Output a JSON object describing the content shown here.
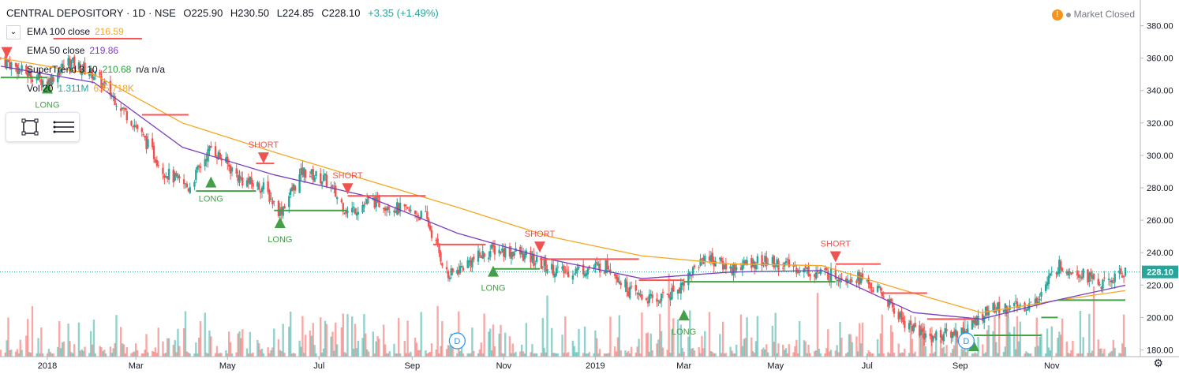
{
  "header": {
    "symbol": "CENTRAL DEPOSITORY · 1D · NSE",
    "open_label": "O225.90",
    "high_label": "H230.50",
    "low_label": "L224.85",
    "close_label": "C228.10",
    "change_label": "+3.35 (+1.49%)"
  },
  "indicators": [
    {
      "name": "EMA 100 close",
      "value": "216.59",
      "color": "#f5a623"
    },
    {
      "name": "EMA 50 close",
      "value": "219.86",
      "color": "#7b3fbd"
    },
    {
      "name": "SuperTrend 3 10",
      "value": "210.68",
      "extra": "n/a n/a",
      "color": "#2e9e3c"
    },
    {
      "name": "Vol 20",
      "value": "1.311M",
      "extra": "635.718K",
      "color": "#26a69a"
    }
  ],
  "status": {
    "text": "Market Closed"
  },
  "colors": {
    "up": "#26a69a",
    "down": "#ef5350",
    "long": "#43a047",
    "short": "#ef5350",
    "ema100": "#f5a623",
    "ema50": "#7b3fbd",
    "st_up": "#43a047",
    "st_down": "#ff5252"
  },
  "icons": {
    "collapse": "chevron-down-icon",
    "rect": "rectangle-tool-icon",
    "menu": "lines-menu-icon",
    "settings": "gear-icon",
    "warning": "warning-icon"
  },
  "chart_data": {
    "type": "candlestick",
    "title": "CENTRAL DEPOSITORY · 1D · NSE",
    "x_range": [
      "2017-12-01",
      "2019-12-20"
    ],
    "ylim": [
      170,
      390
    ],
    "y_ticks": [
      180,
      200,
      220,
      240,
      260,
      280,
      300,
      320,
      340,
      360,
      380
    ],
    "y_tick_labels": [
      "180.00",
      "200.00",
      "220.00",
      "240.00",
      "260.00",
      "280.00",
      "300.00",
      "320.00",
      "340.00",
      "360.00",
      "380.00"
    ],
    "x_ticks": [
      {
        "date": "2018-01-01",
        "label": "2018"
      },
      {
        "date": "2018-03-01",
        "label": "Mar"
      },
      {
        "date": "2018-05-01",
        "label": "May"
      },
      {
        "date": "2018-07-01",
        "label": "Jul"
      },
      {
        "date": "2018-09-01",
        "label": "Sep"
      },
      {
        "date": "2018-11-01",
        "label": "Nov"
      },
      {
        "date": "2019-01-01",
        "label": "2019"
      },
      {
        "date": "2019-03-01",
        "label": "Mar"
      },
      {
        "date": "2019-05-01",
        "label": "May"
      },
      {
        "date": "2019-07-01",
        "label": "Jul"
      },
      {
        "date": "2019-09-01",
        "label": "Sep"
      },
      {
        "date": "2019-11-01",
        "label": "Nov"
      }
    ],
    "last_price": 228.1,
    "last_price_label": "228.10",
    "close_path": [
      {
        "date": "2017-12-01",
        "value": 360
      },
      {
        "date": "2017-12-15",
        "value": 352
      },
      {
        "date": "2018-01-01",
        "value": 345
      },
      {
        "date": "2018-01-15",
        "value": 358
      },
      {
        "date": "2018-02-01",
        "value": 350
      },
      {
        "date": "2018-02-15",
        "value": 335
      },
      {
        "date": "2018-03-01",
        "value": 318
      },
      {
        "date": "2018-03-20",
        "value": 290
      },
      {
        "date": "2018-04-05",
        "value": 280
      },
      {
        "date": "2018-04-20",
        "value": 305
      },
      {
        "date": "2018-05-10",
        "value": 285
      },
      {
        "date": "2018-05-25",
        "value": 280
      },
      {
        "date": "2018-06-05",
        "value": 265
      },
      {
        "date": "2018-06-20",
        "value": 290
      },
      {
        "date": "2018-07-05",
        "value": 285
      },
      {
        "date": "2018-07-20",
        "value": 265
      },
      {
        "date": "2018-08-05",
        "value": 272
      },
      {
        "date": "2018-08-20",
        "value": 268
      },
      {
        "date": "2018-09-10",
        "value": 262
      },
      {
        "date": "2018-09-25",
        "value": 225
      },
      {
        "date": "2018-10-10",
        "value": 235
      },
      {
        "date": "2018-10-25",
        "value": 242
      },
      {
        "date": "2018-11-10",
        "value": 240
      },
      {
        "date": "2018-11-25",
        "value": 233
      },
      {
        "date": "2018-12-10",
        "value": 228
      },
      {
        "date": "2018-12-25",
        "value": 230
      },
      {
        "date": "2019-01-10",
        "value": 232
      },
      {
        "date": "2019-01-25",
        "value": 215
      },
      {
        "date": "2019-02-10",
        "value": 210
      },
      {
        "date": "2019-02-25",
        "value": 218
      },
      {
        "date": "2019-03-15",
        "value": 238
      },
      {
        "date": "2019-04-01",
        "value": 230
      },
      {
        "date": "2019-04-20",
        "value": 235
      },
      {
        "date": "2019-05-10",
        "value": 232
      },
      {
        "date": "2019-05-25",
        "value": 228
      },
      {
        "date": "2019-06-10",
        "value": 226
      },
      {
        "date": "2019-06-25",
        "value": 225
      },
      {
        "date": "2019-07-10",
        "value": 215
      },
      {
        "date": "2019-07-25",
        "value": 198
      },
      {
        "date": "2019-08-10",
        "value": 188
      },
      {
        "date": "2019-08-25",
        "value": 190
      },
      {
        "date": "2019-09-05",
        "value": 192
      },
      {
        "date": "2019-09-20",
        "value": 205
      },
      {
        "date": "2019-10-05",
        "value": 206
      },
      {
        "date": "2019-10-20",
        "value": 208
      },
      {
        "date": "2019-11-05",
        "value": 232
      },
      {
        "date": "2019-11-20",
        "value": 228
      },
      {
        "date": "2019-12-05",
        "value": 220
      },
      {
        "date": "2019-12-20",
        "value": 228
      }
    ],
    "ema100": [
      {
        "date": "2017-12-01",
        "value": 360
      },
      {
        "date": "2018-02-01",
        "value": 350
      },
      {
        "date": "2018-04-01",
        "value": 320
      },
      {
        "date": "2018-06-01",
        "value": 302
      },
      {
        "date": "2018-08-01",
        "value": 285
      },
      {
        "date": "2018-10-01",
        "value": 268
      },
      {
        "date": "2018-12-01",
        "value": 250
      },
      {
        "date": "2019-02-01",
        "value": 238
      },
      {
        "date": "2019-04-01",
        "value": 233
      },
      {
        "date": "2019-06-01",
        "value": 232
      },
      {
        "date": "2019-08-01",
        "value": 215
      },
      {
        "date": "2019-09-15",
        "value": 203
      },
      {
        "date": "2019-11-01",
        "value": 210
      },
      {
        "date": "2019-12-20",
        "value": 216.59
      }
    ],
    "ema50": [
      {
        "date": "2017-12-01",
        "value": 355
      },
      {
        "date": "2018-02-01",
        "value": 345
      },
      {
        "date": "2018-04-01",
        "value": 305
      },
      {
        "date": "2018-06-01",
        "value": 288
      },
      {
        "date": "2018-08-01",
        "value": 275
      },
      {
        "date": "2018-10-01",
        "value": 252
      },
      {
        "date": "2018-12-01",
        "value": 236
      },
      {
        "date": "2019-02-01",
        "value": 224
      },
      {
        "date": "2019-04-01",
        "value": 228
      },
      {
        "date": "2019-06-01",
        "value": 229
      },
      {
        "date": "2019-08-01",
        "value": 203
      },
      {
        "date": "2019-09-15",
        "value": 199
      },
      {
        "date": "2019-11-01",
        "value": 210
      },
      {
        "date": "2019-12-20",
        "value": 219.86
      }
    ],
    "supertrend": [
      {
        "x0": "2017-12-01",
        "x1": "2018-01-01",
        "value": 348,
        "dir": "up"
      },
      {
        "x0": "2018-01-05",
        "x1": "2018-03-05",
        "value": 372,
        "dir": "down"
      },
      {
        "x0": "2018-03-05",
        "x1": "2018-04-05",
        "value": 325,
        "dir": "down"
      },
      {
        "x0": "2018-04-10",
        "x1": "2018-05-20",
        "value": 278,
        "dir": "up"
      },
      {
        "x0": "2018-05-20",
        "x1": "2018-06-01",
        "value": 295,
        "dir": "down"
      },
      {
        "x0": "2018-06-01",
        "x1": "2018-07-20",
        "value": 266,
        "dir": "up"
      },
      {
        "x0": "2018-07-20",
        "x1": "2018-09-10",
        "value": 275,
        "dir": "down"
      },
      {
        "x0": "2018-09-15",
        "x1": "2018-10-20",
        "value": 245,
        "dir": "down"
      },
      {
        "x0": "2018-10-25",
        "x1": "2018-11-25",
        "value": 230,
        "dir": "up"
      },
      {
        "x0": "2018-11-25",
        "x1": "2019-01-30",
        "value": 236,
        "dir": "down"
      },
      {
        "x0": "2019-01-30",
        "x1": "2019-03-01",
        "value": 223,
        "dir": "down"
      },
      {
        "x0": "2019-03-01",
        "x1": "2019-06-10",
        "value": 222,
        "dir": "up"
      },
      {
        "x0": "2019-06-10",
        "x1": "2019-07-10",
        "value": 233,
        "dir": "down"
      },
      {
        "x0": "2019-07-10",
        "x1": "2019-08-10",
        "value": 215,
        "dir": "down"
      },
      {
        "x0": "2019-08-10",
        "x1": "2019-09-10",
        "value": 199,
        "dir": "down"
      },
      {
        "x0": "2019-09-10",
        "x1": "2019-10-25",
        "value": 189,
        "dir": "up"
      },
      {
        "x0": "2019-10-25",
        "x1": "2019-11-05",
        "value": 200,
        "dir": "up"
      },
      {
        "x0": "2019-11-05",
        "x1": "2019-12-20",
        "value": 210.68,
        "dir": "up"
      }
    ],
    "signals": [
      {
        "date": "2017-12-05",
        "value": 360,
        "type": "short",
        "label": ""
      },
      {
        "date": "2018-01-01",
        "value": 345,
        "type": "long",
        "label": "LONG"
      },
      {
        "date": "2018-04-20",
        "value": 287,
        "type": "long",
        "label": "LONG"
      },
      {
        "date": "2018-05-25",
        "value": 295,
        "type": "short",
        "label": "SHORT"
      },
      {
        "date": "2018-06-05",
        "value": 262,
        "type": "long",
        "label": "LONG"
      },
      {
        "date": "2018-07-20",
        "value": 276,
        "type": "short",
        "label": "SHORT"
      },
      {
        "date": "2018-10-25",
        "value": 232,
        "type": "long",
        "label": "LONG"
      },
      {
        "date": "2018-11-25",
        "value": 240,
        "type": "short",
        "label": "SHORT"
      },
      {
        "date": "2019-03-01",
        "value": 205,
        "type": "long",
        "label": "LONG"
      },
      {
        "date": "2019-06-10",
        "value": 234,
        "type": "short",
        "label": "SHORT"
      },
      {
        "date": "2019-09-10",
        "value": 186,
        "type": "long",
        "label": ""
      }
    ],
    "dividend_markers": [
      {
        "date": "2018-10-01",
        "label": "D"
      },
      {
        "date": "2019-09-05",
        "label": "D"
      }
    ],
    "volume_note": "volume histogram at bottom (Vol 20)"
  }
}
